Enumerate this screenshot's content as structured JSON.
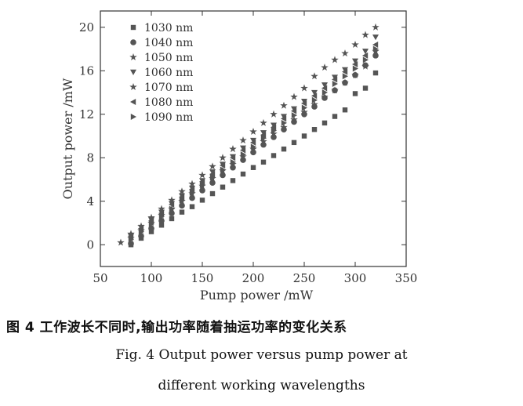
{
  "chart_data": {
    "type": "scatter",
    "title": "",
    "xlabel": "Pump power /mW",
    "ylabel": "Output power /mW",
    "xlim": [
      50,
      350
    ],
    "ylim": [
      -2,
      21.5
    ],
    "xticks": [
      50,
      100,
      150,
      200,
      250,
      300,
      350
    ],
    "yticks": [
      0,
      4,
      8,
      12,
      16,
      20
    ],
    "grid": false,
    "legend_position": "top-left",
    "marker_color": "#555555",
    "series": [
      {
        "name": "1030 nm",
        "marker": "square",
        "x": [
          80,
          90,
          100,
          110,
          120,
          130,
          140,
          150,
          160,
          170,
          180,
          190,
          200,
          210,
          220,
          230,
          240,
          250,
          260,
          270,
          280,
          290,
          300,
          310,
          320
        ],
        "y": [
          0,
          0.6,
          1.2,
          1.8,
          2.4,
          3.0,
          3.5,
          4.1,
          4.7,
          5.3,
          5.9,
          6.5,
          7.1,
          7.6,
          8.2,
          8.8,
          9.4,
          10.0,
          10.6,
          11.2,
          11.8,
          12.4,
          13.9,
          14.4,
          15.8
        ]
      },
      {
        "name": "1040 nm",
        "marker": "circle",
        "x": [
          80,
          90,
          100,
          110,
          120,
          130,
          140,
          150,
          160,
          170,
          180,
          190,
          200,
          210,
          220,
          230,
          240,
          250,
          260,
          270,
          280,
          290,
          300,
          310,
          320
        ],
        "y": [
          0.1,
          0.8,
          1.5,
          2.2,
          2.9,
          3.6,
          4.3,
          5.0,
          5.7,
          6.4,
          7.1,
          7.8,
          8.5,
          9.2,
          9.9,
          10.6,
          11.3,
          12.0,
          12.7,
          13.5,
          14.2,
          14.9,
          15.6,
          16.5,
          17.4
        ]
      },
      {
        "name": "1050 nm",
        "marker": "star",
        "x": [
          80,
          90,
          100,
          110,
          120,
          130,
          140,
          150,
          160,
          170,
          180,
          190,
          200,
          210,
          220,
          230,
          240,
          250,
          260,
          270,
          280,
          290,
          300,
          310,
          320
        ],
        "y": [
          0.6,
          1.3,
          2.0,
          2.7,
          3.3,
          4.0,
          4.7,
          5.4,
          6.1,
          6.8,
          7.4,
          8.1,
          8.8,
          9.5,
          10.2,
          10.8,
          11.5,
          12.2,
          12.9,
          13.6,
          14.2,
          14.9,
          15.6,
          16.4,
          17.8
        ]
      },
      {
        "name": "1060 nm",
        "marker": "triangle-down",
        "x": [
          80,
          90,
          100,
          110,
          120,
          130,
          140,
          150,
          160,
          170,
          180,
          190,
          200,
          210,
          220,
          230,
          240,
          250,
          260,
          270,
          280,
          290,
          300,
          310,
          320
        ],
        "y": [
          0.8,
          1.6,
          2.3,
          3.0,
          3.8,
          4.5,
          5.2,
          5.9,
          6.7,
          7.4,
          8.1,
          8.9,
          9.6,
          10.3,
          11.0,
          11.8,
          12.5,
          13.2,
          14.0,
          14.7,
          15.4,
          16.1,
          16.9,
          17.8,
          19.1
        ]
      },
      {
        "name": "1070 nm",
        "marker": "star",
        "x": [
          70,
          80,
          90,
          100,
          110,
          120,
          130,
          140,
          150,
          160,
          170,
          180,
          190,
          200,
          210,
          220,
          230,
          240,
          250,
          260,
          270,
          280,
          290,
          300,
          310,
          320
        ],
        "y": [
          0.2,
          1.0,
          1.7,
          2.5,
          3.3,
          4.1,
          4.9,
          5.6,
          6.4,
          7.2,
          8.0,
          8.8,
          9.6,
          10.4,
          11.2,
          12.0,
          12.8,
          13.6,
          14.4,
          15.5,
          16.3,
          17.0,
          17.6,
          18.4,
          19.3,
          20.0
        ]
      },
      {
        "name": "1080 nm",
        "marker": "triangle-left",
        "x": [
          80,
          90,
          100,
          110,
          120,
          130,
          140,
          150,
          160,
          170,
          180,
          190,
          200,
          210,
          220,
          230,
          240,
          250,
          260,
          270,
          280,
          290,
          300,
          310,
          320
        ],
        "y": [
          0.8,
          1.5,
          2.2,
          2.9,
          3.7,
          4.4,
          5.1,
          5.8,
          6.5,
          7.3,
          8.0,
          8.7,
          9.4,
          10.1,
          10.8,
          11.6,
          12.3,
          13.0,
          13.7,
          14.4,
          15.2,
          15.9,
          16.6,
          17.4,
          18.4
        ]
      },
      {
        "name": "1090 nm",
        "marker": "triangle-right",
        "x": [
          80,
          90,
          100,
          110,
          120,
          130,
          140,
          150,
          160,
          170,
          180,
          190,
          200,
          210,
          220,
          230,
          240,
          250,
          260,
          270,
          280,
          290,
          300,
          310,
          320
        ],
        "y": [
          0.5,
          1.2,
          1.9,
          2.6,
          3.3,
          4.1,
          4.8,
          5.5,
          6.2,
          6.9,
          7.6,
          8.3,
          9.0,
          9.8,
          10.5,
          11.2,
          11.9,
          12.6,
          13.3,
          14.0,
          14.8,
          15.5,
          16.2,
          17.0,
          18.0
        ]
      }
    ]
  },
  "caption": {
    "cn": "图 4  工作波长不同时,输出功率随着抽运功率的变化关系",
    "en_line1": "Fig. 4   Output power versus pump power at",
    "en_line2": "different working wavelengths"
  }
}
